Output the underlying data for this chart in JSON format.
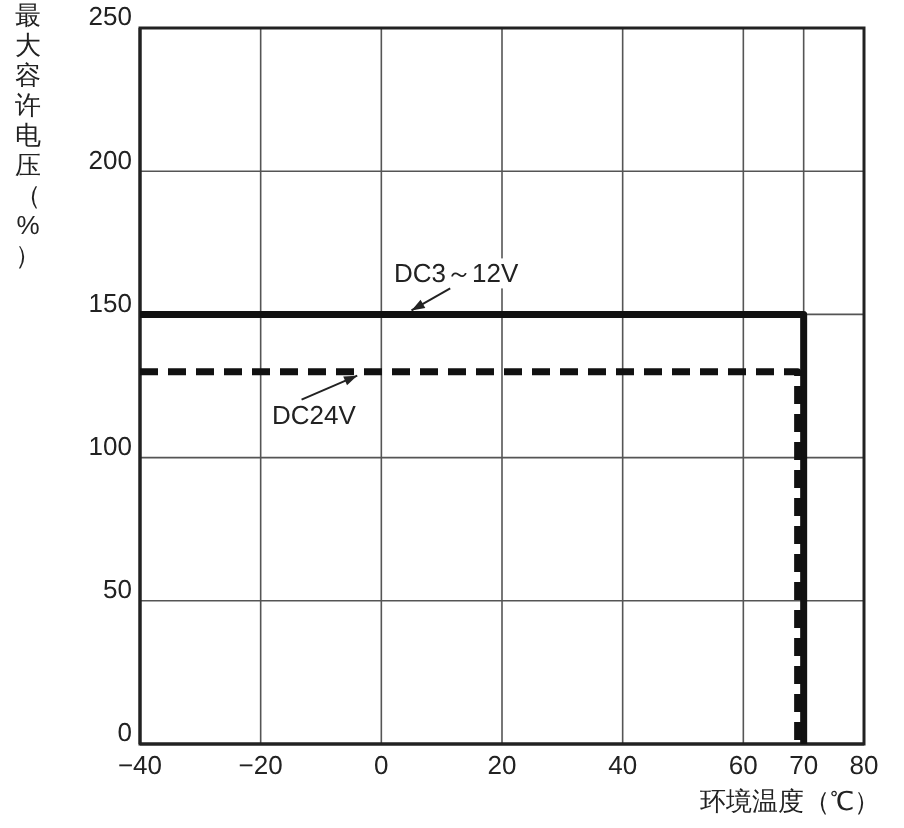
{
  "chart_data": {
    "type": "line",
    "xlabel": "环境温度（℃）",
    "ylabel": "最大容许电压（%）",
    "xlim": [
      -40,
      80
    ],
    "xticks": [
      -40,
      -20,
      0,
      20,
      40,
      60,
      70,
      80
    ],
    "ylim": [
      0,
      250
    ],
    "yticks": [
      0,
      50,
      100,
      150,
      200,
      250
    ],
    "grid": true,
    "marker": "none",
    "series": [
      {
        "name": "DC3～12V",
        "color": "#111111",
        "line_style": "solid",
        "x": [
          -40,
          70,
          70
        ],
        "values": [
          150,
          150,
          0
        ]
      },
      {
        "name": "DC24V",
        "color": "#111111",
        "line_style": "dashed",
        "x": [
          -40,
          69,
          69
        ],
        "values": [
          130,
          130,
          0
        ]
      }
    ]
  }
}
